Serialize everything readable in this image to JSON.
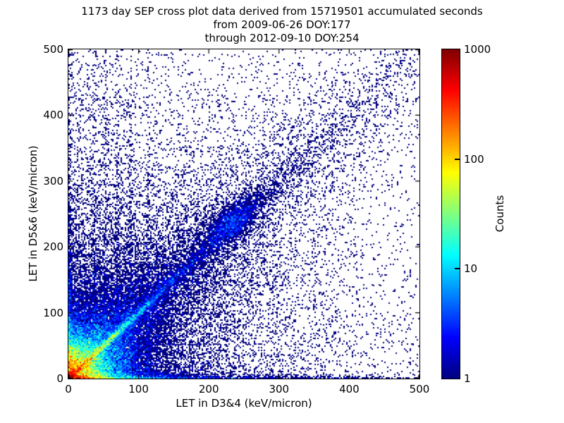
{
  "chart_data": {
    "type": "heatmap",
    "title_lines": [
      "1173 day SEP cross plot data derived from 15719501 accumulated seconds",
      "from 2009-06-26 DOY:177",
      "through 2012-09-10 DOY:254"
    ],
    "xlabel": "LET in D3&4 (keV/micron)",
    "ylabel": "LET in D5&6 (keV/micron)",
    "xlim": [
      0,
      500
    ],
    "ylim": [
      0,
      500
    ],
    "x_ticks": [
      0,
      100,
      200,
      300,
      400,
      500
    ],
    "y_ticks": [
      0,
      100,
      200,
      300,
      400,
      500
    ],
    "grid": false,
    "legend": "none",
    "colorbar": {
      "label": "Counts",
      "scale": "log",
      "range": [
        1,
        1000
      ],
      "ticks": [
        1,
        10,
        100,
        1000
      ],
      "colormap": "jet",
      "stops": [
        {
          "pos": 0.0,
          "color": "#00007f"
        },
        {
          "pos": 0.125,
          "color": "#0000ff"
        },
        {
          "pos": 0.375,
          "color": "#00ffff"
        },
        {
          "pos": 0.625,
          "color": "#ffff00"
        },
        {
          "pos": 0.875,
          "color": "#ff0000"
        },
        {
          "pos": 1.0,
          "color": "#7f0000"
        }
      ]
    },
    "seed": 42,
    "bin_size": 2,
    "noise_sigma": 0.55,
    "density_model": {
      "corner": {
        "amp": 400,
        "scale": 16
      },
      "band_bottom": {
        "layers": [
          [
            900,
            16,
            2.2
          ],
          [
            25,
            70,
            2.2
          ],
          [
            3.2,
            380,
            2.4
          ],
          [
            60,
            30,
            6
          ]
        ]
      },
      "band_left": {
        "layers": [
          [
            700,
            10,
            2.0
          ],
          [
            20,
            60,
            2.0
          ],
          [
            2.2,
            280,
            2.2
          ],
          [
            50,
            25,
            5
          ]
        ]
      },
      "rays": [
        {
          "slope": 1.0,
          "layers": [
            [
              300,
              38,
              2.2
            ],
            [
              6,
              130,
              7
            ],
            [
              1.1,
              240,
              30
            ],
            [
              0.15,
              600,
              65
            ]
          ]
        },
        {
          "slope": 1.45,
          "layers": [
            [
              25,
              30,
              1.8
            ],
            [
              0.7,
              150,
              3.5
            ]
          ]
        },
        {
          "slope": 1.9,
          "layers": [
            [
              22,
              30,
              1.8
            ],
            [
              0.6,
              150,
              3.5
            ]
          ]
        },
        {
          "slope": 2.6,
          "layers": [
            [
              18,
              28,
              1.8
            ],
            [
              0.5,
              140,
              3.0
            ]
          ]
        },
        {
          "slope": 3.8,
          "layers": [
            [
              15,
              26,
              1.6
            ],
            [
              0.4,
              130,
              2.8
            ]
          ]
        },
        {
          "slope": 0.72,
          "layers": [
            [
              8,
              30,
              1.8
            ],
            [
              0.35,
              130,
              3.0
            ]
          ]
        },
        {
          "slope": 0.5,
          "layers": [
            [
              6,
              28,
              1.6
            ],
            [
              0.3,
              120,
              2.8
            ]
          ]
        }
      ],
      "clusters": [
        {
          "x": 233,
          "y": 237,
          "amp": 1.6,
          "sig_par": 30,
          "sig_perp": 13,
          "core": 1.4,
          "sig_core": 11
        }
      ],
      "vstreaks": {
        "xs": [
          37,
          53,
          70,
          88,
          113
        ],
        "amp": 0.7,
        "yscale": 260,
        "width": 1.6
      },
      "halo": [
        [
          2.5,
          75
        ],
        [
          0.5,
          160
        ]
      ],
      "background": {
        "uniform": 0.008,
        "grad_amp": 0.22,
        "grad_scale": 260,
        "left_amp": 0.12,
        "left_xscale": 60,
        "left_yscale": 500
      }
    }
  }
}
